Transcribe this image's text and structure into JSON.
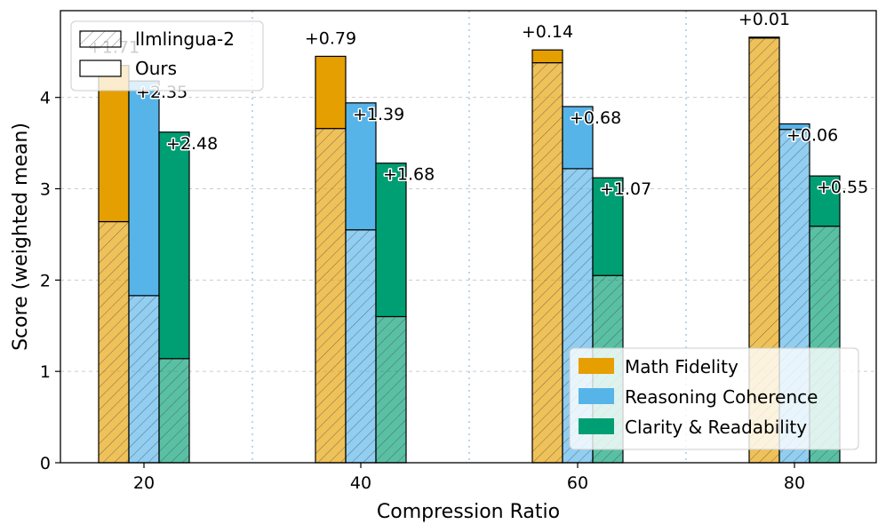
{
  "chart_data": {
    "type": "bar",
    "stacked": true,
    "xlabel": "Compression Ratio",
    "ylabel": "Score (weighted mean)",
    "ylim": [
      0,
      4.95
    ],
    "yticks": [
      0,
      1,
      2,
      3,
      4
    ],
    "categories": [
      "20",
      "40",
      "60",
      "80"
    ],
    "grid": true,
    "series": [
      {
        "name": "Math Fidelity",
        "color": "#E69F00",
        "llmlingua2": [
          2.64,
          3.66,
          4.38,
          4.65
        ],
        "ours_gain": [
          1.71,
          0.79,
          0.14,
          0.01
        ],
        "gain_labels": [
          "+1.71",
          "+0.79",
          "+0.14",
          "+0.01"
        ]
      },
      {
        "name": "Reasoning Coherence",
        "color": "#56B4E9",
        "llmlingua2": [
          1.83,
          2.55,
          3.22,
          3.65
        ],
        "ours_gain": [
          2.35,
          1.39,
          0.68,
          0.06
        ],
        "gain_labels": [
          "+2.35",
          "+1.39",
          "+0.68",
          "+0.06"
        ]
      },
      {
        "name": "Clarity & Readability",
        "color": "#009E73",
        "llmlingua2": [
          1.14,
          1.6,
          2.05,
          2.59
        ],
        "ours_gain": [
          2.48,
          1.68,
          1.07,
          0.55
        ],
        "gain_labels": [
          "+2.48",
          "+1.68",
          "+1.07",
          "+0.55"
        ]
      }
    ],
    "method_legend": {
      "position": "top-left",
      "entries": [
        {
          "label": "llmlingua-2",
          "style": "hatched"
        },
        {
          "label": "Ours",
          "style": "solid"
        }
      ]
    },
    "metric_legend_position": "lower-right"
  }
}
